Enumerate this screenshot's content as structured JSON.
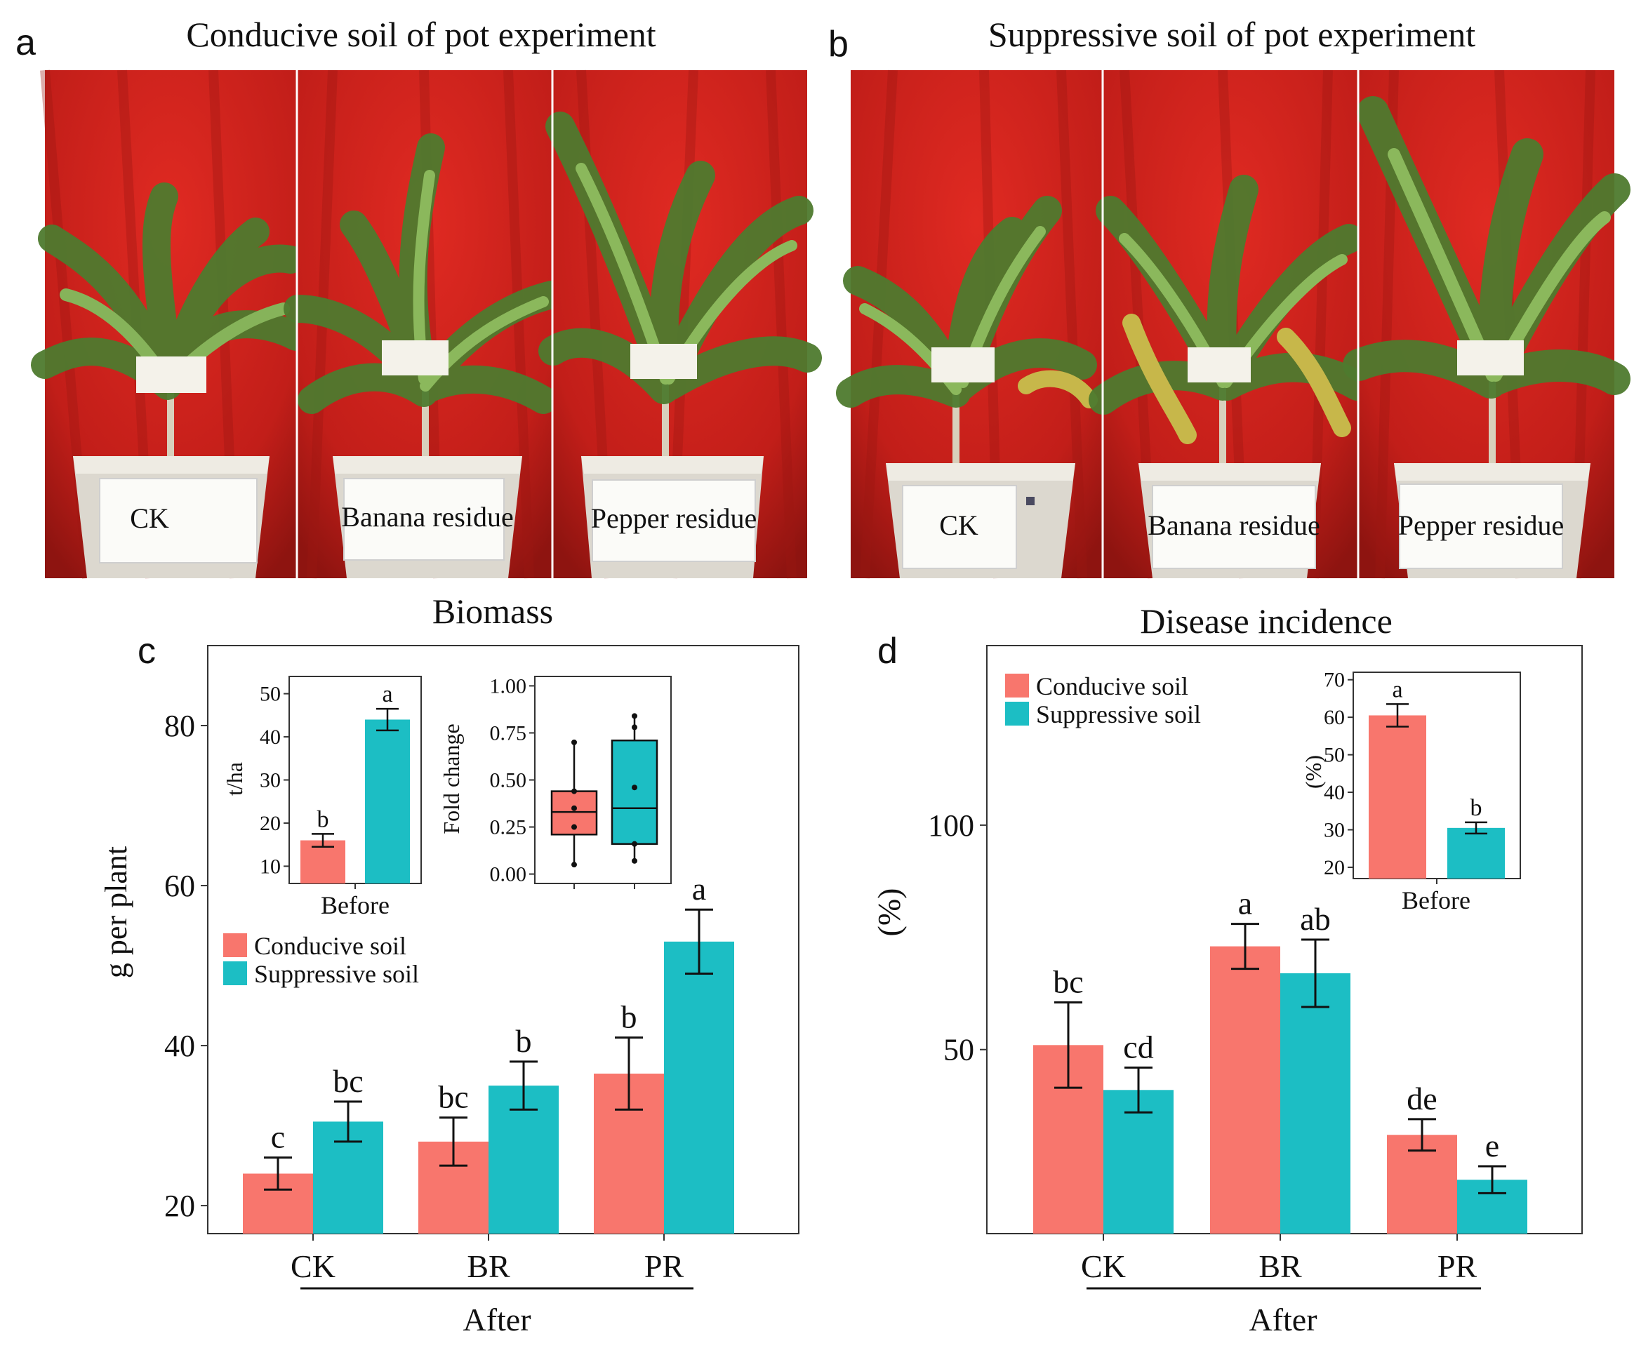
{
  "panels": {
    "a": {
      "letter": "a",
      "title": "Conducive soil of pot experiment",
      "labels": [
        "CK",
        "Banana residue",
        "Pepper residue"
      ]
    },
    "b": {
      "letter": "b",
      "title": "Suppressive soil of pot experiment",
      "labels": [
        "CK",
        "Banana residue",
        "Pepper residue"
      ]
    }
  },
  "colors": {
    "conducive": "#F8766D",
    "suppressive": "#1CBEC4",
    "backdrop": "#C8211C",
    "backdrop_dark": "#8E1410",
    "leaf": "#6E9A3C",
    "leaf_dark": "#3F6B2A",
    "pot": "#DCD8CF"
  },
  "chart_data": [
    {
      "id": "c",
      "letter": "c",
      "type": "bar",
      "title": "Biomass",
      "ylabel": "g per plant",
      "xlabel": "After",
      "categories": [
        "CK",
        "BR",
        "PR"
      ],
      "ylim": [
        16.5,
        90
      ],
      "yticks": [
        20,
        40,
        60,
        80
      ],
      "series": [
        {
          "name": "Conducive soil",
          "color_key": "conducive",
          "values": [
            24,
            28,
            36.5
          ],
          "errors": [
            2,
            3,
            4.5
          ],
          "letters": [
            "c",
            "bc",
            "b"
          ]
        },
        {
          "name": "Suppressive soil",
          "color_key": "suppressive",
          "values": [
            30.5,
            35,
            53
          ],
          "errors": [
            2.5,
            3,
            4
          ],
          "letters": [
            "bc",
            "b",
            "a"
          ]
        }
      ],
      "legend": [
        "Conducive soil",
        "Suppressive soil"
      ],
      "legend_position": "center-left",
      "insets": [
        {
          "type": "bar",
          "ylabel": "t/ha",
          "categories": [
            "Before"
          ],
          "ylim": [
            6,
            54
          ],
          "yticks": [
            10,
            20,
            30,
            40,
            50
          ],
          "values": [
            16,
            44
          ],
          "errors": [
            1.5,
            2.5
          ],
          "letters": [
            "b",
            "a"
          ],
          "color_keys": [
            "conducive",
            "suppressive"
          ]
        },
        {
          "type": "box",
          "ylabel": "Fold change",
          "ylim": [
            -0.05,
            1.05
          ],
          "yticks": [
            0.0,
            0.25,
            0.5,
            0.75,
            1.0
          ],
          "tick_labels": [
            "0.00",
            "0.25",
            "0.50",
            "0.75",
            "1.00"
          ],
          "boxes": [
            {
              "color_key": "conducive",
              "min": 0.05,
              "q1": 0.21,
              "median": 0.33,
              "q3": 0.44,
              "max": 0.7,
              "points": [
                0.05,
                0.25,
                0.35,
                0.44,
                0.7
              ]
            },
            {
              "color_key": "suppressive",
              "min": 0.07,
              "q1": 0.16,
              "median": 0.35,
              "q3": 0.71,
              "max": 0.84,
              "points": [
                0.07,
                0.16,
                0.46,
                0.78,
                0.84
              ]
            }
          ]
        }
      ]
    },
    {
      "id": "d",
      "letter": "d",
      "type": "bar",
      "title": "Disease incidence",
      "ylabel": "(%)",
      "xlabel": "After",
      "categories": [
        "CK",
        "BR",
        "PR"
      ],
      "ylim": [
        9,
        140
      ],
      "yticks": [
        50,
        100
      ],
      "series": [
        {
          "name": "Conducive soil",
          "color_key": "conducive",
          "values": [
            51,
            73,
            31
          ],
          "errors": [
            9.5,
            5,
            3.5
          ],
          "letters": [
            "bc",
            "a",
            "de"
          ]
        },
        {
          "name": "Suppressive soil",
          "color_key": "suppressive",
          "values": [
            41,
            67,
            21
          ],
          "errors": [
            5,
            7.5,
            3
          ],
          "letters": [
            "cd",
            "ab",
            "e"
          ]
        }
      ],
      "legend": [
        "Conducive soil",
        "Suppressive soil"
      ],
      "legend_position": "top-left",
      "insets": [
        {
          "type": "bar",
          "ylabel": "(%)",
          "categories": [
            "Before"
          ],
          "ylim": [
            17,
            72
          ],
          "yticks": [
            20,
            30,
            40,
            50,
            60,
            70
          ],
          "values": [
            60.5,
            30.5
          ],
          "errors": [
            3,
            1.5
          ],
          "letters": [
            "a",
            "b"
          ],
          "color_keys": [
            "conducive",
            "suppressive"
          ]
        }
      ]
    }
  ]
}
